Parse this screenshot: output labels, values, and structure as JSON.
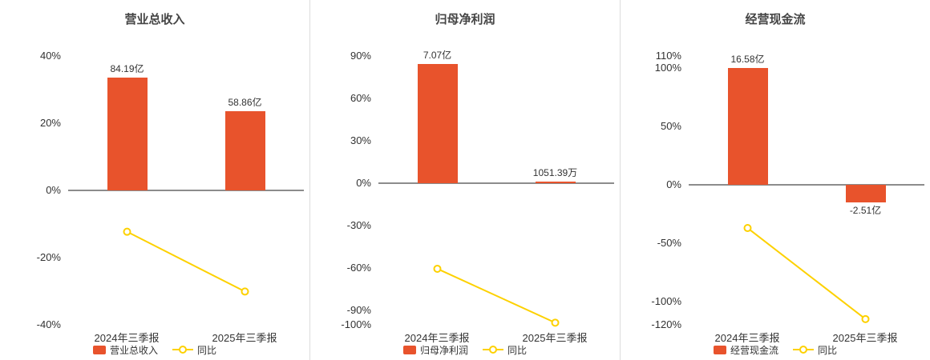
{
  "colors": {
    "bar": "#e8532c",
    "line": "#fdd100",
    "axis_text": "#333333",
    "zero_line": "#8c8c8c"
  },
  "chart_data": [
    {
      "type": "bar",
      "title": "营业总收入",
      "ylim": [
        -40,
        40
      ],
      "yticks": [
        {
          "label": "40%",
          "value": 40
        },
        {
          "label": "20%",
          "value": 20
        },
        {
          "label": "0%",
          "value": 0
        },
        {
          "label": "-20%",
          "value": -20
        },
        {
          "label": "-40%",
          "value": -40
        }
      ],
      "categories": [
        "2024年三季报",
        "2025年三季报"
      ],
      "bar_series": {
        "name": "营业总收入",
        "labels": [
          "84.19亿",
          "58.86亿"
        ],
        "plot_values": [
          33.6,
          23.5
        ]
      },
      "line_series": {
        "name": "同比",
        "values": [
          -12.3,
          -30.1
        ]
      }
    },
    {
      "type": "bar",
      "title": "归母净利润",
      "ylim": [
        -100,
        90
      ],
      "yticks": [
        {
          "label": "90%",
          "value": 90
        },
        {
          "label": "60%",
          "value": 60
        },
        {
          "label": "30%",
          "value": 30
        },
        {
          "label": "0%",
          "value": 0
        },
        {
          "label": "-30%",
          "value": -30
        },
        {
          "label": "-60%",
          "value": -60
        },
        {
          "label": "-90%",
          "value": -90
        },
        {
          "label": "-100%",
          "value": -100
        }
      ],
      "categories": [
        "2024年三季报",
        "2025年三季报"
      ],
      "bar_series": {
        "name": "归母净利润",
        "labels": [
          "7.07亿",
          "1051.39万"
        ],
        "plot_values": [
          84.3,
          1.3
        ]
      },
      "line_series": {
        "name": "同比",
        "values": [
          -60.4,
          -98.5
        ]
      }
    },
    {
      "type": "bar",
      "title": "经营现金流",
      "ylim": [
        -120,
        110
      ],
      "yticks": [
        {
          "label": "110%",
          "value": 110
        },
        {
          "label": "100%",
          "value": 100
        },
        {
          "label": "50%",
          "value": 50
        },
        {
          "label": "0%",
          "value": 0
        },
        {
          "label": "-50%",
          "value": -50
        },
        {
          "label": "-100%",
          "value": -100
        },
        {
          "label": "-120%",
          "value": -120
        }
      ],
      "categories": [
        "2024年三季报",
        "2025年三季报"
      ],
      "bar_series": {
        "name": "经营现金流",
        "labels": [
          "16.58亿",
          "-2.51亿"
        ],
        "plot_values": [
          100,
          -15.1
        ]
      },
      "line_series": {
        "name": "同比",
        "values": [
          -37.2,
          -115.1
        ]
      }
    }
  ]
}
